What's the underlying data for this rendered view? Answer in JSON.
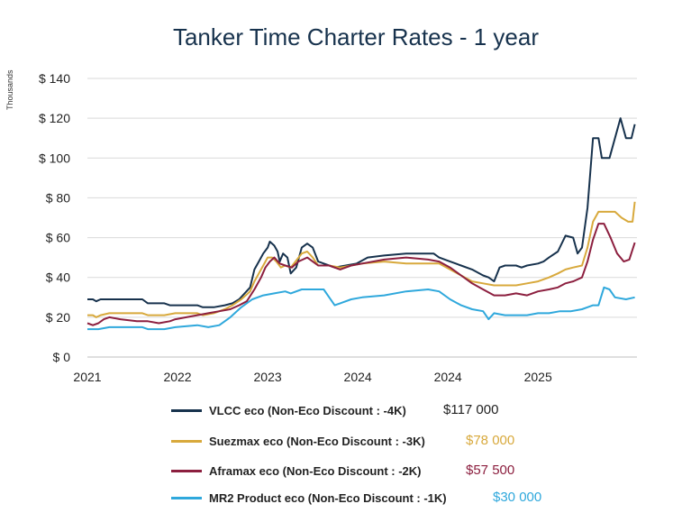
{
  "title": "Tanker Time Charter Rates - 1 year",
  "unit_label": "Thousands",
  "chart_data": {
    "type": "line",
    "title": "Tanker Time Charter Rates - 1 year",
    "ylabel": "Thousands",
    "ylim": [
      0,
      140
    ],
    "y_ticks": [
      0,
      20,
      40,
      60,
      80,
      100,
      120,
      140
    ],
    "y_tick_labels": [
      "$ 0",
      "$ 20",
      "$ 40",
      "$ 60",
      "$ 80",
      "$ 100",
      "$ 120",
      "$ 140"
    ],
    "x_range": [
      2021.0,
      2026.0
    ],
    "x_ticks": [
      2021.0,
      2021.82,
      2022.64,
      2023.46,
      2024.28,
      2025.1
    ],
    "x_tick_labels": [
      "2021",
      "2022",
      "2023",
      "2024",
      "2024",
      "2025"
    ],
    "grid": "horizontal",
    "legend_position": "bottom",
    "series": [
      {
        "name": "VLCC eco (Non-Eco Discount : -4K)",
        "current_value": "$117 000",
        "color": "#17324d",
        "points": [
          [
            2021.0,
            29
          ],
          [
            2021.05,
            29
          ],
          [
            2021.08,
            28
          ],
          [
            2021.12,
            29
          ],
          [
            2021.2,
            29
          ],
          [
            2021.5,
            29
          ],
          [
            2021.55,
            27
          ],
          [
            2021.7,
            27
          ],
          [
            2021.75,
            26
          ],
          [
            2022.0,
            26
          ],
          [
            2022.05,
            25
          ],
          [
            2022.15,
            25
          ],
          [
            2022.25,
            26
          ],
          [
            2022.32,
            27
          ],
          [
            2022.38,
            29
          ],
          [
            2022.43,
            32
          ],
          [
            2022.48,
            35
          ],
          [
            2022.52,
            44
          ],
          [
            2022.56,
            48
          ],
          [
            2022.6,
            52
          ],
          [
            2022.64,
            55
          ],
          [
            2022.66,
            58
          ],
          [
            2022.7,
            56
          ],
          [
            2022.73,
            53
          ],
          [
            2022.75,
            48
          ],
          [
            2022.78,
            52
          ],
          [
            2022.82,
            50
          ],
          [
            2022.85,
            42
          ],
          [
            2022.9,
            45
          ],
          [
            2022.95,
            55
          ],
          [
            2023.0,
            57
          ],
          [
            2023.05,
            55
          ],
          [
            2023.1,
            48
          ],
          [
            2023.15,
            47
          ],
          [
            2023.2,
            46
          ],
          [
            2023.25,
            45
          ],
          [
            2023.35,
            46
          ],
          [
            2023.45,
            47
          ],
          [
            2023.55,
            50
          ],
          [
            2023.7,
            51
          ],
          [
            2023.9,
            52
          ],
          [
            2024.05,
            52
          ],
          [
            2024.15,
            52
          ],
          [
            2024.2,
            50
          ],
          [
            2024.3,
            48
          ],
          [
            2024.4,
            46
          ],
          [
            2024.5,
            44
          ],
          [
            2024.6,
            41
          ],
          [
            2024.65,
            40
          ],
          [
            2024.7,
            38
          ],
          [
            2024.75,
            45
          ],
          [
            2024.8,
            46
          ],
          [
            2024.9,
            46
          ],
          [
            2024.95,
            45
          ],
          [
            2025.0,
            46
          ],
          [
            2025.1,
            47
          ],
          [
            2025.15,
            48
          ],
          [
            2025.2,
            50
          ],
          [
            2025.28,
            53
          ],
          [
            2025.35,
            61
          ],
          [
            2025.42,
            60
          ],
          [
            2025.46,
            52
          ],
          [
            2025.5,
            55
          ],
          [
            2025.55,
            75
          ],
          [
            2025.6,
            110
          ],
          [
            2025.65,
            110
          ],
          [
            2025.68,
            100
          ],
          [
            2025.75,
            100
          ],
          [
            2025.8,
            110
          ],
          [
            2025.85,
            120
          ],
          [
            2025.9,
            110
          ],
          [
            2025.95,
            110
          ],
          [
            2025.98,
            117
          ]
        ]
      },
      {
        "name": "Suezmax eco (Non-Eco Discount : -3K)",
        "current_value": "$78 000",
        "color": "#d8a93c",
        "points": [
          [
            2021.0,
            21
          ],
          [
            2021.05,
            21
          ],
          [
            2021.08,
            20
          ],
          [
            2021.12,
            21
          ],
          [
            2021.2,
            22
          ],
          [
            2021.5,
            22
          ],
          [
            2021.55,
            21
          ],
          [
            2021.7,
            21
          ],
          [
            2021.8,
            22
          ],
          [
            2022.0,
            22
          ],
          [
            2022.05,
            21
          ],
          [
            2022.15,
            22
          ],
          [
            2022.25,
            24
          ],
          [
            2022.32,
            26
          ],
          [
            2022.4,
            29
          ],
          [
            2022.48,
            33
          ],
          [
            2022.52,
            38
          ],
          [
            2022.56,
            42
          ],
          [
            2022.6,
            46
          ],
          [
            2022.64,
            50
          ],
          [
            2022.68,
            50
          ],
          [
            2022.72,
            48
          ],
          [
            2022.76,
            45
          ],
          [
            2022.8,
            46
          ],
          [
            2022.85,
            45
          ],
          [
            2022.95,
            52
          ],
          [
            2023.0,
            53
          ],
          [
            2023.05,
            50
          ],
          [
            2023.1,
            46
          ],
          [
            2023.2,
            46
          ],
          [
            2023.3,
            45
          ],
          [
            2023.4,
            46
          ],
          [
            2023.5,
            47
          ],
          [
            2023.7,
            48
          ],
          [
            2023.9,
            47
          ],
          [
            2024.1,
            47
          ],
          [
            2024.2,
            47
          ],
          [
            2024.3,
            44
          ],
          [
            2024.4,
            41
          ],
          [
            2024.5,
            38
          ],
          [
            2024.6,
            37
          ],
          [
            2024.7,
            36
          ],
          [
            2024.8,
            36
          ],
          [
            2024.9,
            36
          ],
          [
            2025.0,
            37
          ],
          [
            2025.1,
            38
          ],
          [
            2025.2,
            40
          ],
          [
            2025.28,
            42
          ],
          [
            2025.35,
            44
          ],
          [
            2025.42,
            45
          ],
          [
            2025.5,
            46
          ],
          [
            2025.55,
            55
          ],
          [
            2025.6,
            68
          ],
          [
            2025.65,
            73
          ],
          [
            2025.7,
            73
          ],
          [
            2025.8,
            73
          ],
          [
            2025.86,
            70
          ],
          [
            2025.92,
            68
          ],
          [
            2025.96,
            68
          ],
          [
            2025.98,
            78
          ]
        ]
      },
      {
        "name": "Aframax eco (Non-Eco Discount : -2K)",
        "current_value": "$57 500",
        "color": "#8c1f3f",
        "points": [
          [
            2021.0,
            17
          ],
          [
            2021.05,
            16
          ],
          [
            2021.1,
            17
          ],
          [
            2021.15,
            19
          ],
          [
            2021.2,
            20
          ],
          [
            2021.3,
            19
          ],
          [
            2021.45,
            18
          ],
          [
            2021.55,
            18
          ],
          [
            2021.65,
            17
          ],
          [
            2021.75,
            18
          ],
          [
            2021.8,
            19
          ],
          [
            2021.9,
            20
          ],
          [
            2022.0,
            21
          ],
          [
            2022.1,
            22
          ],
          [
            2022.2,
            23
          ],
          [
            2022.3,
            24
          ],
          [
            2022.38,
            26
          ],
          [
            2022.45,
            28
          ],
          [
            2022.52,
            34
          ],
          [
            2022.58,
            40
          ],
          [
            2022.62,
            45
          ],
          [
            2022.66,
            48
          ],
          [
            2022.7,
            50
          ],
          [
            2022.75,
            47
          ],
          [
            2022.8,
            46
          ],
          [
            2022.86,
            45
          ],
          [
            2022.92,
            48
          ],
          [
            2023.0,
            50
          ],
          [
            2023.05,
            48
          ],
          [
            2023.1,
            46
          ],
          [
            2023.2,
            46
          ],
          [
            2023.3,
            44
          ],
          [
            2023.4,
            46
          ],
          [
            2023.5,
            47
          ],
          [
            2023.7,
            49
          ],
          [
            2023.9,
            50
          ],
          [
            2024.1,
            49
          ],
          [
            2024.2,
            48
          ],
          [
            2024.3,
            45
          ],
          [
            2024.4,
            41
          ],
          [
            2024.5,
            37
          ],
          [
            2024.6,
            34
          ],
          [
            2024.7,
            31
          ],
          [
            2024.8,
            31
          ],
          [
            2024.9,
            32
          ],
          [
            2025.0,
            31
          ],
          [
            2025.1,
            33
          ],
          [
            2025.2,
            34
          ],
          [
            2025.28,
            35
          ],
          [
            2025.35,
            37
          ],
          [
            2025.42,
            38
          ],
          [
            2025.5,
            40
          ],
          [
            2025.55,
            48
          ],
          [
            2025.6,
            59
          ],
          [
            2025.65,
            67
          ],
          [
            2025.7,
            67
          ],
          [
            2025.76,
            60
          ],
          [
            2025.82,
            52
          ],
          [
            2025.88,
            48
          ],
          [
            2025.93,
            49
          ],
          [
            2025.98,
            57.5
          ]
        ]
      },
      {
        "name": "MR2 Product eco (Non-Eco Discount : -1K)",
        "current_value": "$30 000",
        "color": "#2fa8dc",
        "points": [
          [
            2021.0,
            14
          ],
          [
            2021.1,
            14
          ],
          [
            2021.2,
            15
          ],
          [
            2021.5,
            15
          ],
          [
            2021.55,
            14
          ],
          [
            2021.7,
            14
          ],
          [
            2021.8,
            15
          ],
          [
            2022.0,
            16
          ],
          [
            2022.1,
            15
          ],
          [
            2022.2,
            16
          ],
          [
            2022.3,
            20
          ],
          [
            2022.4,
            25
          ],
          [
            2022.5,
            29
          ],
          [
            2022.6,
            31
          ],
          [
            2022.7,
            32
          ],
          [
            2022.8,
            33
          ],
          [
            2022.85,
            32
          ],
          [
            2022.95,
            34
          ],
          [
            2023.05,
            34
          ],
          [
            2023.15,
            34
          ],
          [
            2023.2,
            30
          ],
          [
            2023.25,
            26
          ],
          [
            2023.3,
            27
          ],
          [
            2023.4,
            29
          ],
          [
            2023.5,
            30
          ],
          [
            2023.7,
            31
          ],
          [
            2023.9,
            33
          ],
          [
            2024.1,
            34
          ],
          [
            2024.2,
            33
          ],
          [
            2024.3,
            29
          ],
          [
            2024.4,
            26
          ],
          [
            2024.5,
            24
          ],
          [
            2024.6,
            23
          ],
          [
            2024.65,
            19
          ],
          [
            2024.7,
            22
          ],
          [
            2024.8,
            21
          ],
          [
            2024.9,
            21
          ],
          [
            2025.0,
            21
          ],
          [
            2025.1,
            22
          ],
          [
            2025.2,
            22
          ],
          [
            2025.3,
            23
          ],
          [
            2025.4,
            23
          ],
          [
            2025.5,
            24
          ],
          [
            2025.55,
            25
          ],
          [
            2025.6,
            26
          ],
          [
            2025.65,
            26
          ],
          [
            2025.7,
            35
          ],
          [
            2025.75,
            34
          ],
          [
            2025.8,
            30
          ],
          [
            2025.9,
            29
          ],
          [
            2025.98,
            30
          ]
        ]
      }
    ]
  }
}
